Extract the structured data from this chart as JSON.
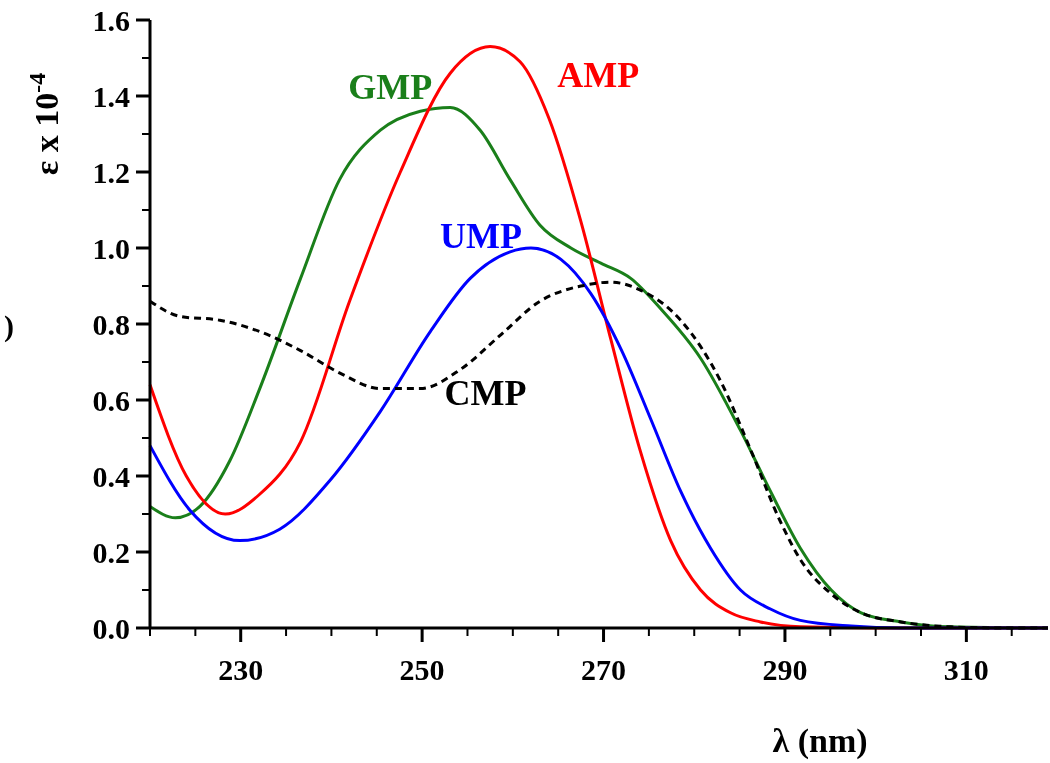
{
  "chart_data": {
    "type": "line",
    "xlabel": "λ (nm)",
    "ylabel": "ε x 10$^{-4}$",
    "xlim": [
      220,
      319
    ],
    "xticks": [
      230,
      250,
      270,
      290,
      310
    ],
    "ylim": [
      0,
      1.6
    ],
    "yticks": [
      {
        "value": 0,
        "label": "0.0"
      },
      {
        "value": 0.2,
        "label": "0.2"
      },
      {
        "value": 0.4,
        "label": "0.4"
      },
      {
        "value": 0.6,
        "label": "0.6"
      },
      {
        "value": 0.8,
        "label": "0.8"
      },
      {
        "value": 1,
        "label": "1.0"
      },
      {
        "value": 1.2,
        "label": "1.2"
      },
      {
        "value": 1.4,
        "label": "1.4"
      },
      {
        "value": 1.6,
        "label": "1.6"
      }
    ],
    "grid": false,
    "marker": "none",
    "annotations": [
      ")"
    ],
    "series": [
      {
        "name": "GMP",
        "color": "#1a7f1a",
        "line_style": "solid",
        "x": [
          220,
          222.8,
          225.5,
          228.8,
          232.1,
          236.6,
          240.9,
          245.4,
          249.8,
          253.1,
          256.4,
          259.7,
          263,
          266.4,
          269.7,
          273,
          276.3,
          280.7,
          285.1,
          288.4,
          291.7,
          295.1,
          298.4,
          302.8,
          308.3,
          319
        ],
        "values": [
          0.32,
          0.29,
          0.32,
          0.44,
          0.63,
          0.92,
          1.18,
          1.31,
          1.36,
          1.37,
          1.31,
          1.18,
          1.06,
          1.0,
          0.96,
          0.92,
          0.84,
          0.71,
          0.52,
          0.36,
          0.21,
          0.1,
          0.04,
          0.016,
          0.003,
          0
        ]
      },
      {
        "name": "AMP",
        "color": "#ff0000",
        "line_style": "solid",
        "x": [
          220,
          224,
          228.3,
          232,
          236.6,
          242,
          247.6,
          253.1,
          257.5,
          260.8,
          264,
          267.5,
          270.8,
          274,
          277.4,
          280.7,
          284,
          287.3,
          291.7,
          300,
          319
        ],
        "values": [
          0.64,
          0.4,
          0.3,
          0.35,
          0.49,
          0.86,
          1.2,
          1.46,
          1.53,
          1.49,
          1.34,
          1.07,
          0.76,
          0.47,
          0.23,
          0.1,
          0.04,
          0.016,
          0.003,
          0,
          0
        ]
      },
      {
        "name": "UMP",
        "color": "#0000ff",
        "line_style": "solid",
        "x": [
          220,
          224.4,
          229.9,
          234.3,
          239.9,
          245.4,
          250.9,
          255.3,
          259.7,
          262,
          265.3,
          268.6,
          272,
          275.2,
          278.5,
          281.8,
          285.1,
          288.4,
          291.7,
          297.3,
          302.8,
          319
        ],
        "values": [
          0.48,
          0.31,
          0.23,
          0.26,
          0.39,
          0.57,
          0.78,
          0.92,
          0.99,
          1.0,
          0.97,
          0.88,
          0.73,
          0.55,
          0.36,
          0.21,
          0.1,
          0.05,
          0.02,
          0.005,
          0,
          0
        ]
      },
      {
        "name": "CMP",
        "color": "#000000",
        "line_style": "dashed",
        "x": [
          220,
          223.3,
          227.7,
          232.1,
          236.6,
          241,
          245.4,
          249.8,
          254.2,
          258.6,
          263,
          267.5,
          270.8,
          274,
          278.5,
          282.9,
          286.2,
          289.5,
          291.7,
          295.1,
          298.4,
          302.8,
          308.3,
          313.8,
          319
        ],
        "values": [
          0.86,
          0.82,
          0.81,
          0.78,
          0.73,
          0.67,
          0.63,
          0.63,
          0.68,
          0.77,
          0.86,
          0.9,
          0.91,
          0.89,
          0.81,
          0.65,
          0.47,
          0.28,
          0.18,
          0.09,
          0.04,
          0.016,
          0.003,
          0,
          0
        ]
      }
    ]
  }
}
